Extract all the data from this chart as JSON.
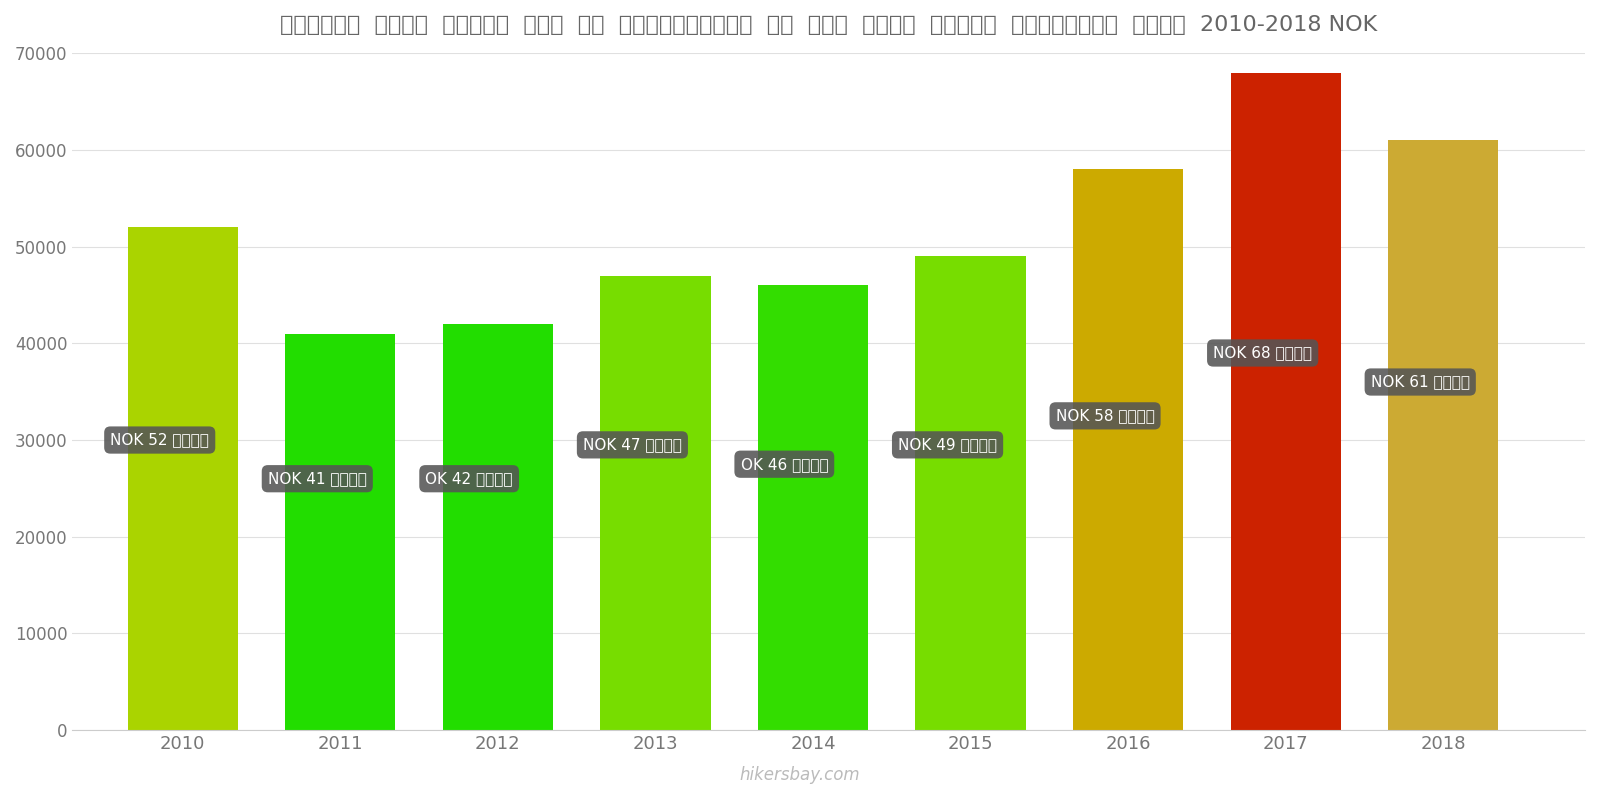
{
  "years": [
    2010,
    2011,
    2012,
    2013,
    2014,
    2015,
    2016,
    2017,
    2018
  ],
  "values": [
    52000,
    41000,
    42000,
    47000,
    46000,
    49000,
    58000,
    68000,
    61000
  ],
  "labels": [
    "NOK 52 हज़ार",
    "NOK 41 हज़ार",
    "OK 42 हज़ार",
    "NOK 47 हज़ार",
    "OK 46 हज़ार",
    "NOK 49 हज़ार",
    "NOK 58 हज़ार",
    "NOK 68 हज़ार",
    "NOK 61 हज़ार"
  ],
  "bar_colors": [
    "#aad400",
    "#22dd00",
    "#22dd00",
    "#77dd00",
    "#33dd00",
    "#77dd00",
    "#ccaa00",
    "#cc2200",
    "#ccaa33"
  ],
  "title": "नॉर्वे  सिटी  सेंटर  में  एक  अपार्टमेंट  के  लिए  कीमत  प्रति  स्क्वायर  मीटर  2010-2018 NOK",
  "ylim": [
    0,
    70000
  ],
  "yticks": [
    0,
    10000,
    20000,
    30000,
    40000,
    50000,
    60000,
    70000
  ],
  "watermark": "hikersbay.com",
  "label_bg_color": "#555555",
  "label_text_color": "#ffffff",
  "label_y_positions": [
    30000,
    26000,
    26000,
    29500,
    27500,
    29500,
    32500,
    39000,
    36000
  ],
  "label_x_offsets": [
    -0.48,
    -0.48,
    -0.48,
    -0.48,
    -0.48,
    -0.48,
    -0.48,
    -0.48,
    -0.48
  ]
}
